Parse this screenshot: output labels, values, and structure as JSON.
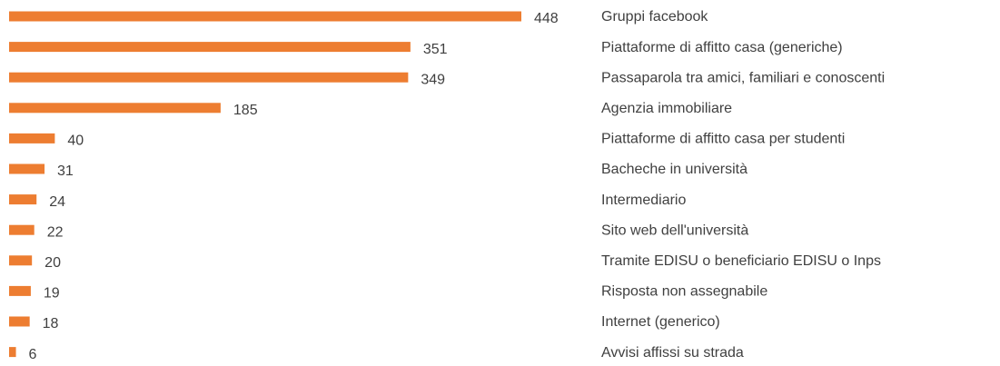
{
  "chart_data": {
    "type": "bar",
    "orientation": "horizontal",
    "color": "#ed7d31",
    "categories": [
      "Gruppi facebook",
      "Piattaforme di affitto casa (generiche)",
      "Passaparola tra amici, familiari e conoscenti",
      "Agenzia immobiliare",
      "Piattaforme di affitto casa per studenti",
      "Bacheche in università",
      "Intermediario",
      "Sito web dell'università",
      "Tramite EDISU o beneficiario EDISU o Inps",
      "Risposta non assegnabile",
      "Internet (generico)",
      "Avvisi affissi su strada"
    ],
    "values": [
      448,
      351,
      349,
      185,
      40,
      31,
      24,
      22,
      20,
      19,
      18,
      6
    ]
  }
}
